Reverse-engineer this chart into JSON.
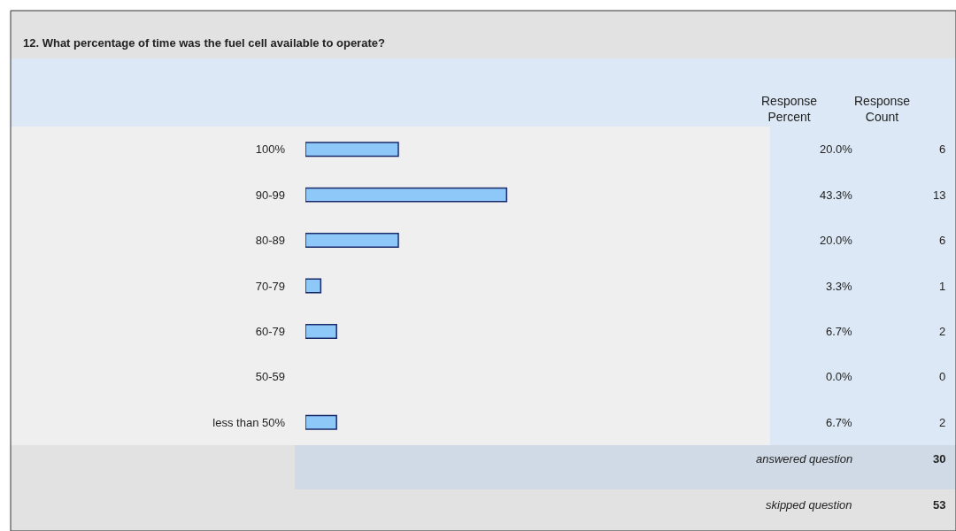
{
  "chart_data": {
    "type": "bar",
    "orientation": "horizontal",
    "title": "12. What percentage of time was the fuel cell available to operate?",
    "categories": [
      "100%",
      "90-99",
      "80-89",
      "70-79",
      "60-79",
      "50-59",
      "less than 50%"
    ],
    "series": [
      {
        "name": "Response Percent",
        "color": "#8ec8f8",
        "values": [
          20.0,
          43.3,
          20.0,
          3.3,
          6.7,
          0.0,
          6.7
        ],
        "value_labels": [
          "20.0%",
          "43.3%",
          "20.0%",
          "3.3%",
          "6.7%",
          "0.0%",
          "6.7%"
        ]
      }
    ],
    "xlim": [
      0,
      100
    ],
    "tick_labels": "y",
    "grid": false,
    "legend": false,
    "annotations": [
      "Response Count",
      "6",
      "13",
      "6",
      "1",
      "2",
      "0",
      "2",
      "answered question",
      "30",
      "skipped question",
      "53"
    ]
  }
}
